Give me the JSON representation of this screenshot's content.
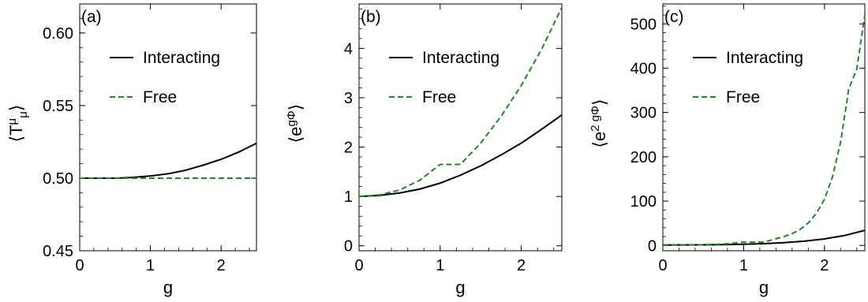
{
  "chart_data": [
    {
      "type": "line",
      "panel_label": "(a)",
      "xlabel": "g",
      "ylabel_base": "⟨T",
      "ylabel_sup": "μ",
      "ylabel_sub": "μ",
      "ylabel_end": "⟩",
      "xlim": [
        0,
        2.5
      ],
      "ylim": [
        0.45,
        0.62
      ],
      "xticks": [
        0,
        1,
        2
      ],
      "xtick_labels": [
        "0",
        "1",
        "2"
      ],
      "yticks": [
        0.45,
        0.5,
        0.55,
        0.6
      ],
      "ytick_labels": [
        "0.45",
        "0.50",
        "0.55",
        "0.60"
      ],
      "legend_position": "top-center",
      "series": [
        {
          "name": "Interacting",
          "color": "#000000",
          "dash": "solid",
          "x": [
            0,
            0.25,
            0.5,
            0.75,
            1.0,
            1.25,
            1.5,
            1.75,
            2.0,
            2.25,
            2.5
          ],
          "y": [
            0.5,
            0.5,
            0.5,
            0.5005,
            0.5015,
            0.503,
            0.5055,
            0.509,
            0.513,
            0.518,
            0.524
          ]
        },
        {
          "name": "Free",
          "color": "#1a8a1a",
          "dash": "dashed",
          "x": [
            0,
            2.5
          ],
          "y": [
            0.5,
            0.5
          ]
        }
      ]
    },
    {
      "type": "line",
      "panel_label": "(b)",
      "xlabel": "g",
      "ylabel_base": "⟨e",
      "ylabel_sup": "gΦ",
      "ylabel_end": "⟩",
      "xlim": [
        0,
        2.5
      ],
      "ylim": [
        -0.1,
        4.9
      ],
      "xticks": [
        0,
        1,
        2
      ],
      "xtick_labels": [
        "0",
        "1",
        "2"
      ],
      "yticks": [
        0,
        1,
        2,
        3,
        4
      ],
      "ytick_labels": [
        "0",
        "1",
        "2",
        "3",
        "4"
      ],
      "legend_position": "top-center",
      "series": [
        {
          "name": "Interacting",
          "color": "#000000",
          "dash": "solid",
          "x": [
            0,
            0.25,
            0.5,
            0.75,
            1.0,
            1.25,
            1.5,
            1.75,
            2.0,
            2.25,
            2.5
          ],
          "y": [
            1.0,
            1.02,
            1.07,
            1.15,
            1.27,
            1.43,
            1.62,
            1.84,
            2.08,
            2.36,
            2.65
          ]
        },
        {
          "name": "Free",
          "color": "#1a8a1a",
          "dash": "dashed",
          "x": [
            0,
            0.25,
            0.5,
            0.75,
            1.0,
            1.25,
            1.5,
            1.75,
            2.0,
            2.25,
            2.5
          ],
          "y": [
            1.0,
            1.03,
            1.13,
            1.33,
            1.65,
            1.65,
            2.08,
            2.62,
            3.25,
            3.98,
            4.83
          ]
        }
      ]
    },
    {
      "type": "line",
      "panel_label": "(c)",
      "xlabel": "g",
      "ylabel_base": "⟨e",
      "ylabel_sup": "2 gΦ",
      "ylabel_end": "⟩",
      "xlim": [
        0,
        2.5
      ],
      "ylim": [
        -12,
        545
      ],
      "xticks": [
        0,
        1,
        2
      ],
      "xtick_labels": [
        "0",
        "1",
        "2"
      ],
      "yticks": [
        0,
        100,
        200,
        300,
        400,
        500
      ],
      "ytick_labels": [
        "0",
        "100",
        "200",
        "300",
        "400",
        "500"
      ],
      "legend_position": "top-center",
      "series": [
        {
          "name": "Interacting",
          "color": "#000000",
          "dash": "solid",
          "x": [
            0,
            0.25,
            0.5,
            0.75,
            1.0,
            1.25,
            1.5,
            1.75,
            2.0,
            2.25,
            2.5
          ],
          "y": [
            1,
            1.1,
            1.3,
            1.8,
            2.7,
            4,
            6.2,
            9.6,
            14.7,
            22.4,
            34
          ]
        },
        {
          "name": "Free",
          "color": "#1a8a1a",
          "dash": "dashed",
          "x": [
            0,
            0.25,
            0.5,
            0.75,
            1.0,
            1.25,
            1.5,
            1.6,
            1.7,
            1.8,
            1.9,
            2.0,
            2.1,
            2.2,
            2.3,
            2.4,
            2.5
          ],
          "y": [
            1,
            1.1,
            1.6,
            3.1,
            7.4,
            7.4,
            20,
            26.6,
            36.1,
            50.6,
            72.3,
            104,
            155,
            233,
            352,
            398,
            520
          ]
        }
      ]
    }
  ]
}
